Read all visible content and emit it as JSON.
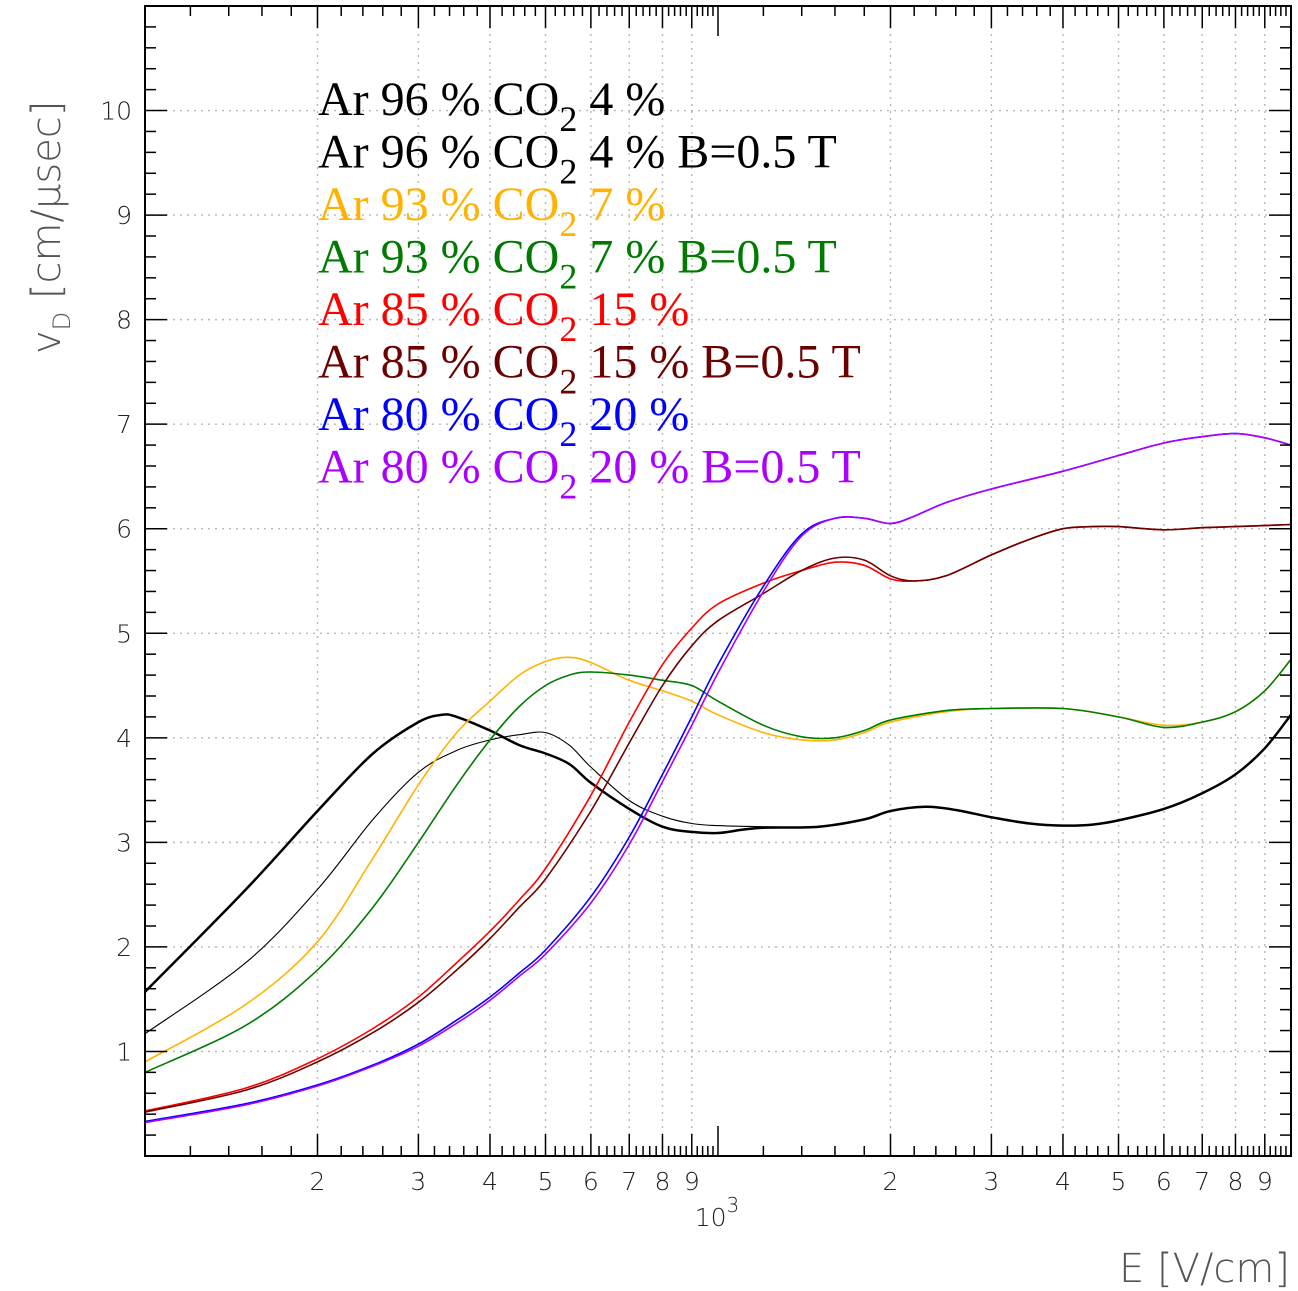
{
  "chart_data": {
    "type": "line",
    "xlabel": "E [V/cm]",
    "ylabel": "v",
    "ylabel_sub": "D",
    "ylabel_unit": "[cm/μsec]",
    "xscale": "log",
    "xlim": [
      100,
      10000
    ],
    "ylim": [
      0,
      11
    ],
    "x_tick_labels": [
      "2",
      "3",
      "4",
      "5",
      "6",
      "7",
      "8",
      "9",
      "2",
      "3",
      "4",
      "5",
      "6",
      "7",
      "8",
      "9"
    ],
    "x_decade_label": "10",
    "x_decade_exp": "3",
    "y_tick_labels": [
      "1",
      "2",
      "3",
      "4",
      "5",
      "6",
      "7",
      "8",
      "9",
      "10"
    ],
    "grid": true,
    "legend_position": "top-left",
    "series": [
      {
        "name": "Ar 96 % CO2 4 %",
        "legend": {
          "prefix": "Ar 96 % CO",
          "sub": "2",
          "suffix": "  4 %"
        },
        "color": "#000000",
        "width": 2.5,
        "points": [
          [
            100,
            1.57
          ],
          [
            150,
            2.55
          ],
          [
            200,
            3.3
          ],
          [
            250,
            3.85
          ],
          [
            300,
            4.15
          ],
          [
            330,
            4.22
          ],
          [
            350,
            4.2
          ],
          [
            400,
            4.07
          ],
          [
            450,
            3.93
          ],
          [
            500,
            3.85
          ],
          [
            550,
            3.75
          ],
          [
            600,
            3.57
          ],
          [
            700,
            3.32
          ],
          [
            800,
            3.15
          ],
          [
            900,
            3.1
          ],
          [
            1000,
            3.09
          ],
          [
            1100,
            3.12
          ],
          [
            1200,
            3.14
          ],
          [
            1500,
            3.15
          ],
          [
            1800,
            3.22
          ],
          [
            2000,
            3.3
          ],
          [
            2300,
            3.34
          ],
          [
            2600,
            3.31
          ],
          [
            3000,
            3.24
          ],
          [
            3500,
            3.18
          ],
          [
            4000,
            3.16
          ],
          [
            4500,
            3.17
          ],
          [
            5000,
            3.21
          ],
          [
            6000,
            3.32
          ],
          [
            7000,
            3.47
          ],
          [
            8000,
            3.65
          ],
          [
            9000,
            3.9
          ],
          [
            10000,
            4.22
          ]
        ]
      },
      {
        "name": "Ar 96 % CO2 4 % B=0.5 T",
        "legend": {
          "prefix": "Ar 96 % CO",
          "sub": "2",
          "suffix": "  4 % B=0.5 T"
        },
        "color": "#000000",
        "width": 1.1,
        "points": [
          [
            100,
            1.17
          ],
          [
            150,
            1.85
          ],
          [
            200,
            2.55
          ],
          [
            250,
            3.22
          ],
          [
            300,
            3.67
          ],
          [
            350,
            3.88
          ],
          [
            400,
            3.98
          ],
          [
            450,
            4.03
          ],
          [
            500,
            4.05
          ],
          [
            550,
            3.93
          ],
          [
            600,
            3.72
          ],
          [
            700,
            3.4
          ],
          [
            800,
            3.25
          ],
          [
            900,
            3.18
          ],
          [
            1000,
            3.16
          ],
          [
            1200,
            3.15
          ],
          [
            1500,
            3.15
          ],
          [
            1800,
            3.22
          ],
          [
            2000,
            3.3
          ],
          [
            2300,
            3.34
          ],
          [
            2600,
            3.31
          ],
          [
            3000,
            3.24
          ],
          [
            3500,
            3.18
          ],
          [
            4000,
            3.16
          ],
          [
            4500,
            3.17
          ],
          [
            5000,
            3.21
          ],
          [
            6000,
            3.32
          ],
          [
            7000,
            3.47
          ],
          [
            8000,
            3.65
          ],
          [
            9000,
            3.9
          ],
          [
            10000,
            4.22
          ]
        ]
      },
      {
        "name": "Ar 93 % CO2 7 %",
        "legend": {
          "prefix": "Ar 93 % CO",
          "sub": "2",
          "suffix": "  7 %"
        },
        "color": "#ffb300",
        "width": 1.6,
        "points": [
          [
            100,
            0.9
          ],
          [
            150,
            1.45
          ],
          [
            200,
            2.05
          ],
          [
            250,
            2.85
          ],
          [
            300,
            3.55
          ],
          [
            350,
            4.05
          ],
          [
            400,
            4.35
          ],
          [
            450,
            4.6
          ],
          [
            500,
            4.73
          ],
          [
            550,
            4.77
          ],
          [
            600,
            4.72
          ],
          [
            700,
            4.55
          ],
          [
            800,
            4.45
          ],
          [
            900,
            4.35
          ],
          [
            1000,
            4.22
          ],
          [
            1200,
            4.05
          ],
          [
            1400,
            3.98
          ],
          [
            1600,
            3.98
          ],
          [
            1800,
            4.05
          ],
          [
            2000,
            4.15
          ],
          [
            2500,
            4.25
          ],
          [
            3000,
            4.28
          ],
          [
            4000,
            4.28
          ],
          [
            5000,
            4.2
          ],
          [
            6000,
            4.12
          ],
          [
            7000,
            4.15
          ],
          [
            8000,
            4.25
          ],
          [
            9000,
            4.45
          ],
          [
            10000,
            4.75
          ]
        ]
      },
      {
        "name": "Ar 93 % CO2 7 % B=0.5 T",
        "legend": {
          "prefix": "Ar 93 % CO",
          "sub": "2",
          "suffix": "  7 % B=0.5 T"
        },
        "color": "#007a00",
        "width": 1.6,
        "points": [
          [
            100,
            0.8
          ],
          [
            150,
            1.25
          ],
          [
            200,
            1.78
          ],
          [
            250,
            2.38
          ],
          [
            300,
            3.0
          ],
          [
            350,
            3.55
          ],
          [
            400,
            3.98
          ],
          [
            450,
            4.3
          ],
          [
            500,
            4.5
          ],
          [
            550,
            4.6
          ],
          [
            600,
            4.63
          ],
          [
            700,
            4.6
          ],
          [
            800,
            4.55
          ],
          [
            900,
            4.5
          ],
          [
            1000,
            4.35
          ],
          [
            1200,
            4.12
          ],
          [
            1400,
            4.01
          ],
          [
            1600,
            4.0
          ],
          [
            1800,
            4.07
          ],
          [
            2000,
            4.17
          ],
          [
            2500,
            4.26
          ],
          [
            3000,
            4.28
          ],
          [
            4000,
            4.28
          ],
          [
            5000,
            4.2
          ],
          [
            6000,
            4.1
          ],
          [
            7000,
            4.15
          ],
          [
            8000,
            4.25
          ],
          [
            9000,
            4.45
          ],
          [
            10000,
            4.75
          ]
        ]
      },
      {
        "name": "Ar 85 % CO2 15 %",
        "legend": {
          "prefix": "Ar 85 % CO",
          "sub": "2",
          "suffix": "  15 %"
        },
        "color": "#ff0000",
        "width": 1.6,
        "points": [
          [
            100,
            0.43
          ],
          [
            150,
            0.65
          ],
          [
            200,
            0.93
          ],
          [
            250,
            1.22
          ],
          [
            300,
            1.52
          ],
          [
            350,
            1.85
          ],
          [
            400,
            2.15
          ],
          [
            450,
            2.45
          ],
          [
            500,
            2.75
          ],
          [
            600,
            3.45
          ],
          [
            700,
            4.15
          ],
          [
            800,
            4.7
          ],
          [
            900,
            5.05
          ],
          [
            1000,
            5.28
          ],
          [
            1200,
            5.48
          ],
          [
            1400,
            5.6
          ],
          [
            1600,
            5.68
          ],
          [
            1800,
            5.65
          ],
          [
            2000,
            5.52
          ],
          [
            2200,
            5.5
          ],
          [
            2500,
            5.55
          ],
          [
            3000,
            5.75
          ],
          [
            3500,
            5.9
          ],
          [
            4000,
            6.0
          ],
          [
            4500,
            6.02
          ],
          [
            5000,
            6.02
          ],
          [
            6000,
            5.99
          ],
          [
            7000,
            6.01
          ],
          [
            8000,
            6.02
          ],
          [
            10000,
            6.04
          ]
        ]
      },
      {
        "name": "Ar 85 % CO2 15 % B=0.5 T",
        "legend": {
          "prefix": "Ar 85 % CO",
          "sub": "2",
          "suffix": "  15 % B=0.5 T"
        },
        "color": "#6b0000",
        "width": 1.6,
        "points": [
          [
            100,
            0.42
          ],
          [
            150,
            0.63
          ],
          [
            200,
            0.9
          ],
          [
            250,
            1.18
          ],
          [
            300,
            1.47
          ],
          [
            350,
            1.78
          ],
          [
            400,
            2.08
          ],
          [
            450,
            2.38
          ],
          [
            500,
            2.65
          ],
          [
            600,
            3.3
          ],
          [
            700,
            3.95
          ],
          [
            800,
            4.5
          ],
          [
            900,
            4.88
          ],
          [
            1000,
            5.12
          ],
          [
            1200,
            5.38
          ],
          [
            1400,
            5.6
          ],
          [
            1600,
            5.72
          ],
          [
            1800,
            5.7
          ],
          [
            2000,
            5.55
          ],
          [
            2200,
            5.5
          ],
          [
            2500,
            5.55
          ],
          [
            3000,
            5.75
          ],
          [
            3500,
            5.9
          ],
          [
            4000,
            6.0
          ],
          [
            4500,
            6.02
          ],
          [
            5000,
            6.02
          ],
          [
            6000,
            5.99
          ],
          [
            7000,
            6.01
          ],
          [
            8000,
            6.02
          ],
          [
            10000,
            6.04
          ]
        ]
      },
      {
        "name": "Ar 80 % CO2 20 %",
        "legend": {
          "prefix": "Ar 80 % CO",
          "sub": "2",
          "suffix": "  20 %"
        },
        "color": "#0000ff",
        "width": 1.6,
        "points": [
          [
            100,
            0.33
          ],
          [
            150,
            0.5
          ],
          [
            200,
            0.68
          ],
          [
            250,
            0.87
          ],
          [
            300,
            1.07
          ],
          [
            350,
            1.3
          ],
          [
            400,
            1.52
          ],
          [
            450,
            1.75
          ],
          [
            500,
            1.97
          ],
          [
            600,
            2.48
          ],
          [
            700,
            3.05
          ],
          [
            800,
            3.65
          ],
          [
            900,
            4.2
          ],
          [
            1000,
            4.7
          ],
          [
            1200,
            5.45
          ],
          [
            1400,
            5.95
          ],
          [
            1600,
            6.1
          ],
          [
            1800,
            6.1
          ],
          [
            2000,
            6.05
          ],
          [
            2200,
            6.12
          ],
          [
            2500,
            6.25
          ],
          [
            3000,
            6.38
          ],
          [
            4000,
            6.55
          ],
          [
            5000,
            6.7
          ],
          [
            6000,
            6.82
          ],
          [
            7000,
            6.88
          ],
          [
            8000,
            6.91
          ],
          [
            9000,
            6.87
          ],
          [
            10000,
            6.8
          ]
        ]
      },
      {
        "name": "Ar 80 % CO2 20 % B=0.5 T",
        "legend": {
          "prefix": "Ar 80 % CO",
          "sub": "2",
          "suffix": "  20 % B=0.5 T"
        },
        "color": "#aa00ff",
        "width": 1.6,
        "points": [
          [
            100,
            0.32
          ],
          [
            150,
            0.49
          ],
          [
            200,
            0.67
          ],
          [
            250,
            0.86
          ],
          [
            300,
            1.05
          ],
          [
            350,
            1.27
          ],
          [
            400,
            1.49
          ],
          [
            450,
            1.72
          ],
          [
            500,
            1.93
          ],
          [
            600,
            2.42
          ],
          [
            700,
            2.98
          ],
          [
            800,
            3.58
          ],
          [
            900,
            4.12
          ],
          [
            1000,
            4.62
          ],
          [
            1200,
            5.4
          ],
          [
            1400,
            5.93
          ],
          [
            1600,
            6.1
          ],
          [
            1800,
            6.1
          ],
          [
            2000,
            6.05
          ],
          [
            2200,
            6.12
          ],
          [
            2500,
            6.25
          ],
          [
            3000,
            6.38
          ],
          [
            4000,
            6.55
          ],
          [
            5000,
            6.7
          ],
          [
            6000,
            6.82
          ],
          [
            7000,
            6.88
          ],
          [
            8000,
            6.91
          ],
          [
            9000,
            6.87
          ],
          [
            10000,
            6.8
          ]
        ]
      }
    ]
  }
}
